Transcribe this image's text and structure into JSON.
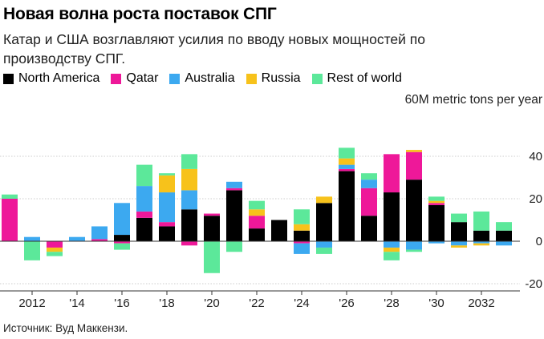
{
  "title": "Новая волна роста поставок СПГ",
  "subtitle": "Катар и США возглавляют усилия по вводу новых мощностей по производству СПГ.",
  "unit_label": "60M metric tons per year",
  "source": "Источник: Вуд Маккензи.",
  "colors": {
    "North America": "#000000",
    "Qatar": "#ee1899",
    "Australia": "#3ca9f0",
    "Russia": "#f7c21b",
    "Rest of world": "#5ce89a"
  },
  "chart_data": {
    "type": "bar",
    "stacked": true,
    "ylabel": "60M metric tons per year",
    "ylim": [
      -20,
      60
    ],
    "yticks": [
      40,
      20,
      0,
      -20
    ],
    "grid": true,
    "legend": "top-left",
    "x": [
      2011,
      2012,
      2013,
      2014,
      2015,
      2016,
      2017,
      2018,
      2019,
      2020,
      2021,
      2022,
      2023,
      2024,
      2025,
      2026,
      2027,
      2028,
      2029,
      2030,
      2031,
      2032,
      2033
    ],
    "xtick_labels": [
      {
        "x": 2012,
        "label": "2012"
      },
      {
        "x": 2014,
        "label": "'14"
      },
      {
        "x": 2016,
        "label": "'16"
      },
      {
        "x": 2018,
        "label": "'18"
      },
      {
        "x": 2020,
        "label": "'20"
      },
      {
        "x": 2022,
        "label": "'22"
      },
      {
        "x": 2024,
        "label": "'24"
      },
      {
        "x": 2026,
        "label": "'26"
      },
      {
        "x": 2028,
        "label": "'28"
      },
      {
        "x": 2030,
        "label": "'30"
      },
      {
        "x": 2032,
        "label": "2032"
      }
    ],
    "series": [
      {
        "name": "North America",
        "values": [
          0,
          0,
          0,
          0,
          0,
          3,
          11,
          7,
          15,
          12,
          24,
          6,
          10,
          5,
          18,
          33,
          12,
          23,
          29,
          17,
          9,
          5,
          5
        ]
      },
      {
        "name": "Qatar",
        "values": [
          20,
          0,
          -3,
          0,
          1,
          -1,
          3,
          2,
          -2,
          1,
          1,
          6,
          0,
          -1,
          0,
          1,
          13,
          18,
          13,
          1,
          0,
          0,
          0
        ]
      },
      {
        "name": "Australia",
        "values": [
          0,
          2,
          0,
          2,
          6,
          15,
          12,
          14,
          9,
          0,
          3,
          0,
          0,
          -5,
          -3,
          2,
          4,
          -3,
          -4,
          -1,
          -2,
          -1,
          -2
        ]
      },
      {
        "name": "Russia",
        "values": [
          0,
          0,
          -2,
          0,
          0,
          0,
          0,
          8,
          10,
          0,
          0,
          3,
          0,
          3,
          3,
          3,
          0,
          -2,
          1,
          1,
          -1,
          -1,
          0
        ]
      },
      {
        "name": "Rest of world",
        "values": [
          2,
          -9,
          -2,
          0,
          0,
          -3,
          10,
          1,
          7,
          -15,
          -5,
          4,
          0,
          7,
          -3,
          5,
          3,
          -4,
          -1,
          2,
          4,
          9,
          4
        ]
      }
    ]
  }
}
